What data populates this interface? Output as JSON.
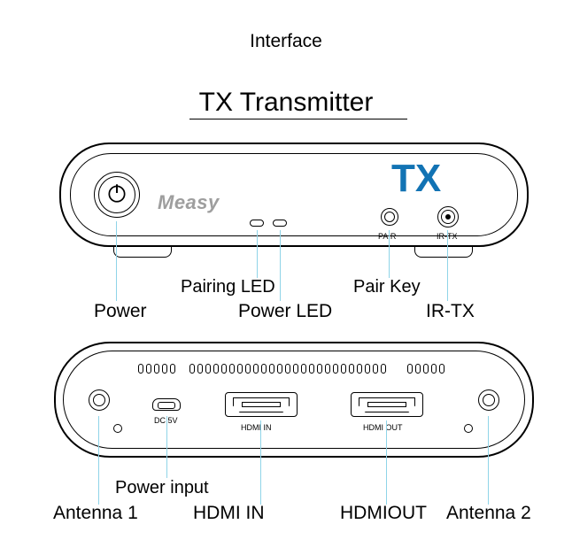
{
  "page_title": "Interface",
  "device_title": "TX Transmitter",
  "brand": "Measy",
  "tx_mark": "TX",
  "accent_color": "#1273b4",
  "leader_color": "#8fd4e8",
  "front": {
    "port_labels": {
      "pair": "PAIR",
      "irtx": "IR-TX"
    },
    "callouts": {
      "power": "Power",
      "pairing_led": "Pairing LED",
      "power_led": "Power LED",
      "pair_key": "Pair Key",
      "irtx": "IR-TX"
    }
  },
  "rear": {
    "port_labels": {
      "dc": "DC 5V",
      "hdmi_in": "HDMI IN",
      "hdmi_out": "HDMI OUT"
    },
    "callouts": {
      "antenna1": "Antenna 1",
      "power_input": "Power input",
      "hdmi_in": "HDMI IN",
      "hdmi_out": "HDMIOUT",
      "antenna2": "Antenna 2"
    },
    "vent_counts": {
      "g1": 5,
      "g2": 25,
      "g3": 5
    }
  }
}
